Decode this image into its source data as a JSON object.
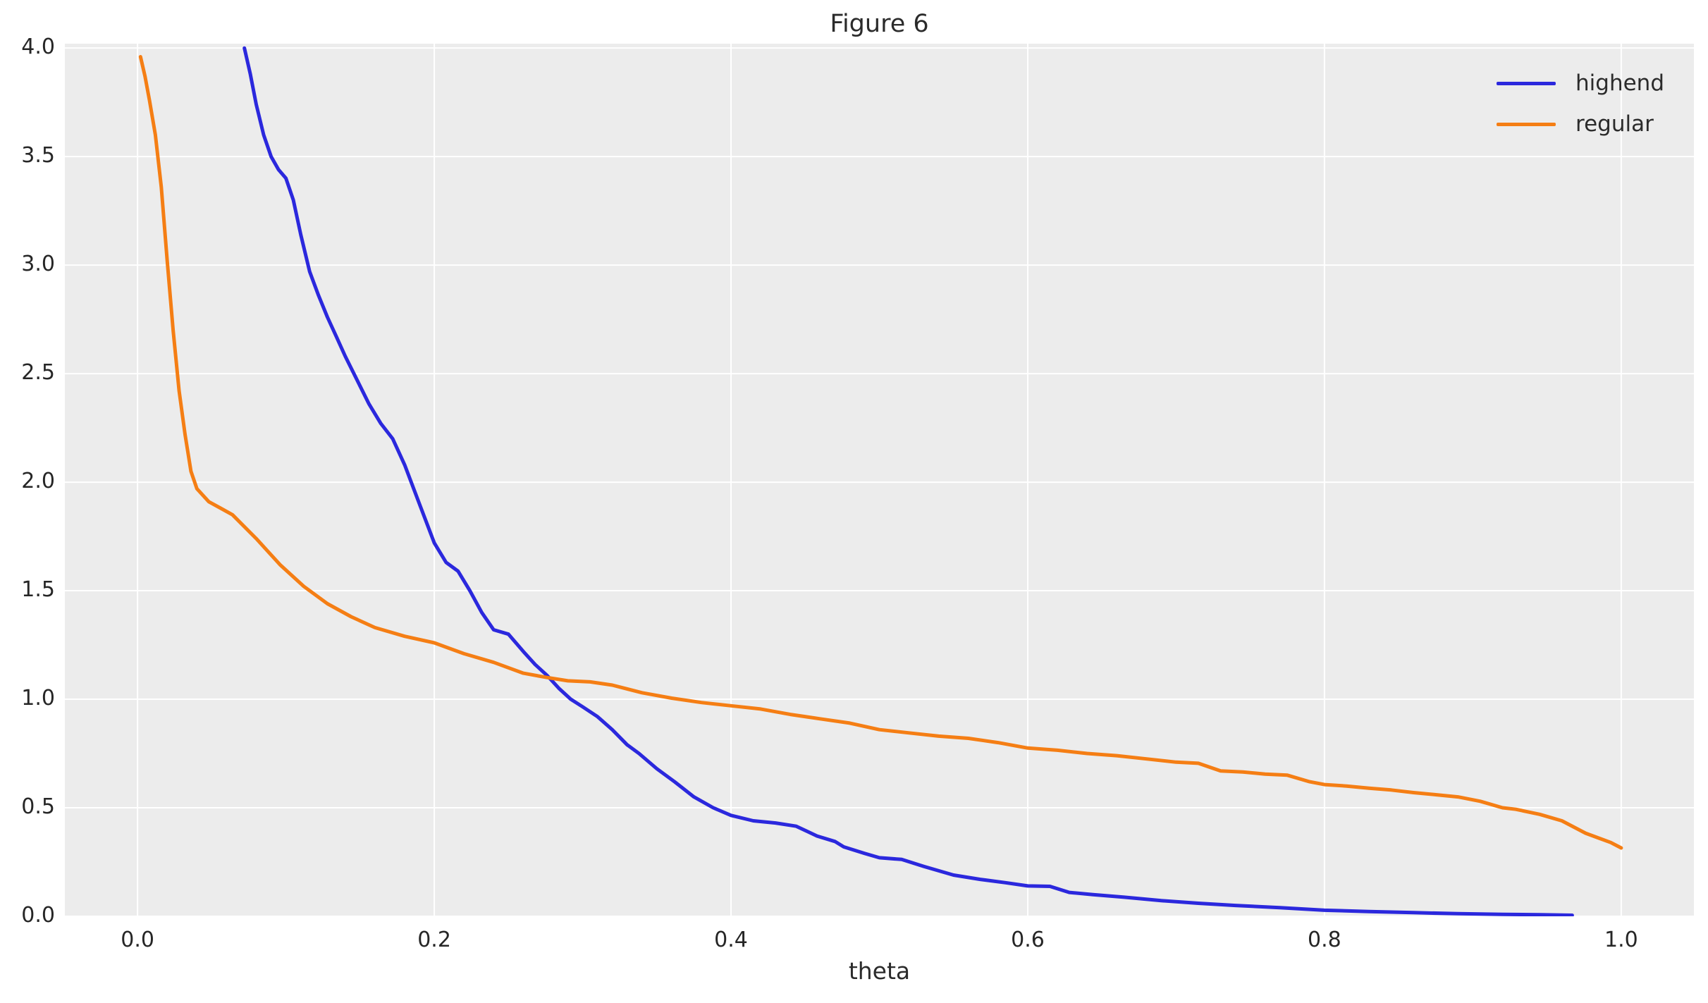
{
  "figure": {
    "title": "Figure 6",
    "background": "#ffffff",
    "axes_background": "#ececec",
    "grid_color": "#ffffff",
    "text_color": "#2b2b2b",
    "tick_color": "#262626"
  },
  "chart_data": {
    "type": "line",
    "title": "Figure 6",
    "xlabel": "theta",
    "ylabel": "",
    "grid": true,
    "legend_position": "upper right",
    "xlim": [
      -0.049,
      1.049
    ],
    "ylim": [
      0,
      4.02
    ],
    "xticks": {
      "values": [
        0.0,
        0.2,
        0.4,
        0.6,
        0.8,
        1.0
      ],
      "labels": [
        "0.0",
        "0.2",
        "0.4",
        "0.6",
        "0.8",
        "1.0"
      ]
    },
    "yticks": {
      "values": [
        0.0,
        0.5,
        1.0,
        1.5,
        2.0,
        2.5,
        3.0,
        3.5,
        4.0
      ],
      "labels": [
        "0.0",
        "0.5",
        "1.0",
        "1.5",
        "2.0",
        "2.5",
        "3.0",
        "3.5",
        "4.0"
      ]
    },
    "line_width": 5,
    "series": [
      {
        "name": "highend",
        "color": "#2b28dd",
        "x": [
          0.072,
          0.076,
          0.08,
          0.085,
          0.09,
          0.095,
          0.1,
          0.105,
          0.11,
          0.116,
          0.122,
          0.128,
          0.134,
          0.14,
          0.148,
          0.156,
          0.164,
          0.172,
          0.18,
          0.19,
          0.2,
          0.208,
          0.216,
          0.224,
          0.232,
          0.24,
          0.25,
          0.26,
          0.268,
          0.276,
          0.284,
          0.292,
          0.3,
          0.31,
          0.32,
          0.33,
          0.338,
          0.35,
          0.362,
          0.375,
          0.388,
          0.4,
          0.415,
          0.43,
          0.444,
          0.458,
          0.47,
          0.476,
          0.49,
          0.5,
          0.515,
          0.53,
          0.55,
          0.568,
          0.585,
          0.6,
          0.615,
          0.628,
          0.644,
          0.665,
          0.69,
          0.715,
          0.74,
          0.77,
          0.8,
          0.83,
          0.86,
          0.89,
          0.92,
          0.945,
          0.967
        ],
        "y": [
          4.0,
          3.88,
          3.74,
          3.6,
          3.5,
          3.44,
          3.4,
          3.3,
          3.14,
          2.97,
          2.86,
          2.76,
          2.67,
          2.58,
          2.47,
          2.36,
          2.27,
          2.2,
          2.08,
          1.9,
          1.72,
          1.63,
          1.59,
          1.5,
          1.4,
          1.32,
          1.3,
          1.22,
          1.16,
          1.11,
          1.05,
          1.0,
          0.965,
          0.92,
          0.86,
          0.79,
          0.75,
          0.68,
          0.62,
          0.55,
          0.5,
          0.465,
          0.44,
          0.43,
          0.415,
          0.37,
          0.345,
          0.32,
          0.29,
          0.27,
          0.262,
          0.23,
          0.19,
          0.17,
          0.155,
          0.14,
          0.138,
          0.11,
          0.1,
          0.088,
          0.072,
          0.06,
          0.05,
          0.04,
          0.028,
          0.022,
          0.017,
          0.012,
          0.009,
          0.007,
          0.005
        ]
      },
      {
        "name": "regular",
        "color": "#f57e14",
        "x": [
          0.002,
          0.005,
          0.008,
          0.012,
          0.016,
          0.02,
          0.024,
          0.028,
          0.032,
          0.036,
          0.04,
          0.048,
          0.056,
          0.064,
          0.08,
          0.096,
          0.112,
          0.128,
          0.144,
          0.16,
          0.18,
          0.2,
          0.22,
          0.24,
          0.26,
          0.276,
          0.29,
          0.305,
          0.32,
          0.34,
          0.36,
          0.38,
          0.4,
          0.42,
          0.44,
          0.46,
          0.48,
          0.5,
          0.52,
          0.54,
          0.56,
          0.58,
          0.6,
          0.62,
          0.64,
          0.66,
          0.68,
          0.7,
          0.715,
          0.73,
          0.745,
          0.76,
          0.775,
          0.79,
          0.8,
          0.815,
          0.83,
          0.845,
          0.86,
          0.875,
          0.89,
          0.905,
          0.92,
          0.929,
          0.945,
          0.96,
          0.976,
          0.985,
          0.993,
          1.0
        ],
        "y": [
          3.96,
          3.87,
          3.76,
          3.6,
          3.36,
          3.02,
          2.7,
          2.42,
          2.22,
          2.05,
          1.97,
          1.91,
          1.88,
          1.85,
          1.74,
          1.62,
          1.52,
          1.44,
          1.38,
          1.33,
          1.29,
          1.26,
          1.21,
          1.17,
          1.12,
          1.1,
          1.085,
          1.08,
          1.065,
          1.03,
          1.005,
          0.985,
          0.97,
          0.955,
          0.93,
          0.91,
          0.89,
          0.86,
          0.845,
          0.83,
          0.82,
          0.8,
          0.775,
          0.765,
          0.75,
          0.74,
          0.725,
          0.71,
          0.705,
          0.67,
          0.665,
          0.655,
          0.65,
          0.62,
          0.607,
          0.6,
          0.59,
          0.582,
          0.57,
          0.56,
          0.55,
          0.53,
          0.5,
          0.493,
          0.47,
          0.44,
          0.383,
          0.36,
          0.34,
          0.315
        ]
      }
    ]
  }
}
